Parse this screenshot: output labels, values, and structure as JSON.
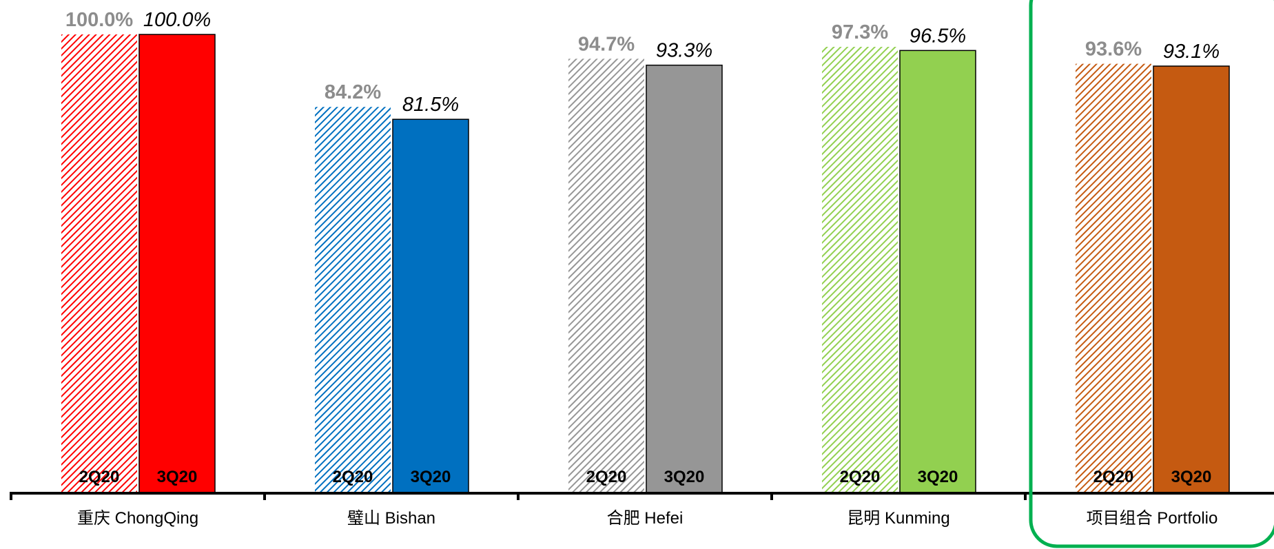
{
  "chart_data": {
    "type": "bar",
    "categories": [
      "重庆 ChongQing",
      "璧山 Bishan",
      "合肥 Hefei",
      "昆明 Kunming",
      "项目组合 Portfolio"
    ],
    "series": [
      {
        "name": "2Q20",
        "values": [
          100.0,
          84.2,
          94.7,
          97.3,
          93.6
        ],
        "labels": [
          "100.0%",
          "84.2%",
          "94.7%",
          "97.3%",
          "93.6%"
        ]
      },
      {
        "name": "3Q20",
        "values": [
          100.0,
          81.5,
          93.3,
          96.5,
          93.1
        ],
        "labels": [
          "100.0%",
          "81.5%",
          "93.3%",
          "96.5%",
          "93.1%"
        ]
      }
    ],
    "ylim": [
      0,
      100
    ],
    "grid": false,
    "legend": "none",
    "highlighted_category": "项目组合 Portfolio",
    "colors": {
      "categories": [
        "#ff0000",
        "#0070c0",
        "#969696",
        "#92d050",
        "#c55a11"
      ],
      "highlight_box": "#00b050",
      "axis": "#000000"
    }
  }
}
